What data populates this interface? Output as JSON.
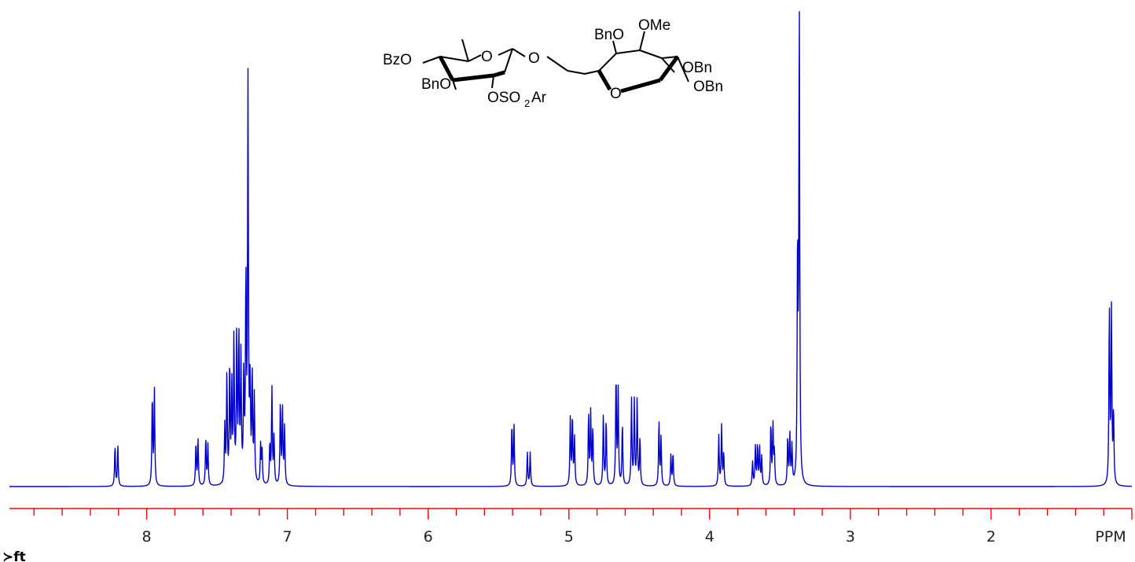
{
  "chart_data": {
    "type": "line",
    "title": "",
    "xlabel": "",
    "ylabel": "",
    "axis_unit_label": "PPM",
    "xlim": [
      8.975,
      1.0
    ],
    "x_reversed": true,
    "ylim": [
      0,
      1.0
    ],
    "grid": false,
    "x_tick_labels": [
      {
        "value": 8,
        "text": "8"
      },
      {
        "value": 7,
        "text": "7"
      },
      {
        "value": 6,
        "text": "6"
      },
      {
        "value": 5,
        "text": "5"
      },
      {
        "value": 4,
        "text": "4"
      },
      {
        "value": 3,
        "text": "3"
      },
      {
        "value": 2,
        "text": "2"
      }
    ],
    "minor_step": 0.2,
    "linewidth_ppm": 0.0035,
    "peaks": [
      {
        "x": 8.225,
        "y": 0.085
      },
      {
        "x": 8.205,
        "y": 0.085
      },
      {
        "x": 7.96,
        "y": 0.19
      },
      {
        "x": 7.945,
        "y": 0.2
      },
      {
        "x": 7.65,
        "y": 0.09
      },
      {
        "x": 7.635,
        "y": 0.095
      },
      {
        "x": 7.58,
        "y": 0.1
      },
      {
        "x": 7.565,
        "y": 0.085
      },
      {
        "x": 7.445,
        "y": 0.12
      },
      {
        "x": 7.43,
        "y": 0.23
      },
      {
        "x": 7.41,
        "y": 0.25
      },
      {
        "x": 7.395,
        "y": 0.2
      },
      {
        "x": 7.38,
        "y": 0.3
      },
      {
        "x": 7.36,
        "y": 0.32
      },
      {
        "x": 7.345,
        "y": 0.3
      },
      {
        "x": 7.33,
        "y": 0.26
      },
      {
        "x": 7.31,
        "y": 0.22
      },
      {
        "x": 7.295,
        "y": 0.42
      },
      {
        "x": 7.28,
        "y": 0.83
      },
      {
        "x": 7.265,
        "y": 0.2
      },
      {
        "x": 7.25,
        "y": 0.22
      },
      {
        "x": 7.235,
        "y": 0.18
      },
      {
        "x": 7.19,
        "y": 0.085
      },
      {
        "x": 7.18,
        "y": 0.07
      },
      {
        "x": 7.125,
        "y": 0.085
      },
      {
        "x": 7.11,
        "y": 0.2
      },
      {
        "x": 7.095,
        "y": 0.1
      },
      {
        "x": 7.05,
        "y": 0.175
      },
      {
        "x": 7.035,
        "y": 0.16
      },
      {
        "x": 7.02,
        "y": 0.12
      },
      {
        "x": 5.405,
        "y": 0.13
      },
      {
        "x": 5.39,
        "y": 0.125
      },
      {
        "x": 5.295,
        "y": 0.07
      },
      {
        "x": 5.275,
        "y": 0.07
      },
      {
        "x": 4.99,
        "y": 0.14
      },
      {
        "x": 4.975,
        "y": 0.145
      },
      {
        "x": 4.96,
        "y": 0.1
      },
      {
        "x": 4.86,
        "y": 0.15
      },
      {
        "x": 4.845,
        "y": 0.15
      },
      {
        "x": 4.83,
        "y": 0.12
      },
      {
        "x": 4.755,
        "y": 0.15
      },
      {
        "x": 4.735,
        "y": 0.14
      },
      {
        "x": 4.665,
        "y": 0.23
      },
      {
        "x": 4.65,
        "y": 0.2
      },
      {
        "x": 4.62,
        "y": 0.13
      },
      {
        "x": 4.555,
        "y": 0.18
      },
      {
        "x": 4.535,
        "y": 0.175
      },
      {
        "x": 4.515,
        "y": 0.18
      },
      {
        "x": 4.495,
        "y": 0.1
      },
      {
        "x": 4.36,
        "y": 0.135
      },
      {
        "x": 4.345,
        "y": 0.1
      },
      {
        "x": 4.275,
        "y": 0.065
      },
      {
        "x": 4.26,
        "y": 0.07
      },
      {
        "x": 3.935,
        "y": 0.105
      },
      {
        "x": 3.915,
        "y": 0.125
      },
      {
        "x": 3.9,
        "y": 0.07
      },
      {
        "x": 3.695,
        "y": 0.05
      },
      {
        "x": 3.675,
        "y": 0.08
      },
      {
        "x": 3.66,
        "y": 0.085
      },
      {
        "x": 3.645,
        "y": 0.08
      },
      {
        "x": 3.63,
        "y": 0.06
      },
      {
        "x": 3.565,
        "y": 0.13
      },
      {
        "x": 3.55,
        "y": 0.125
      },
      {
        "x": 3.54,
        "y": 0.07
      },
      {
        "x": 3.445,
        "y": 0.1
      },
      {
        "x": 3.43,
        "y": 0.105
      },
      {
        "x": 3.415,
        "y": 0.08
      },
      {
        "x": 3.375,
        "y": 0.49
      },
      {
        "x": 3.363,
        "y": 0.99
      },
      {
        "x": 1.16,
        "y": 0.37
      },
      {
        "x": 1.145,
        "y": 0.36
      },
      {
        "x": 1.13,
        "y": 0.15
      }
    ]
  },
  "structure": {
    "labels": {
      "bzo": "BzO",
      "bno_left": "BnO",
      "o_ring_left": "O",
      "o_glyco": "O",
      "oso2ar_o": "OSO",
      "oso2ar_sub": "2",
      "oso2ar_ar": "Ar",
      "bno_right": "BnO",
      "ome": "OMe",
      "obn_upper": "OBn",
      "obn_lower": "OBn",
      "o_ring_right": "O"
    }
  },
  "corner_label": "≻ft",
  "colors": {
    "spectrum": "#0000cc",
    "axis": "#ff0000",
    "ink": "#000000",
    "background": "#ffffff"
  }
}
